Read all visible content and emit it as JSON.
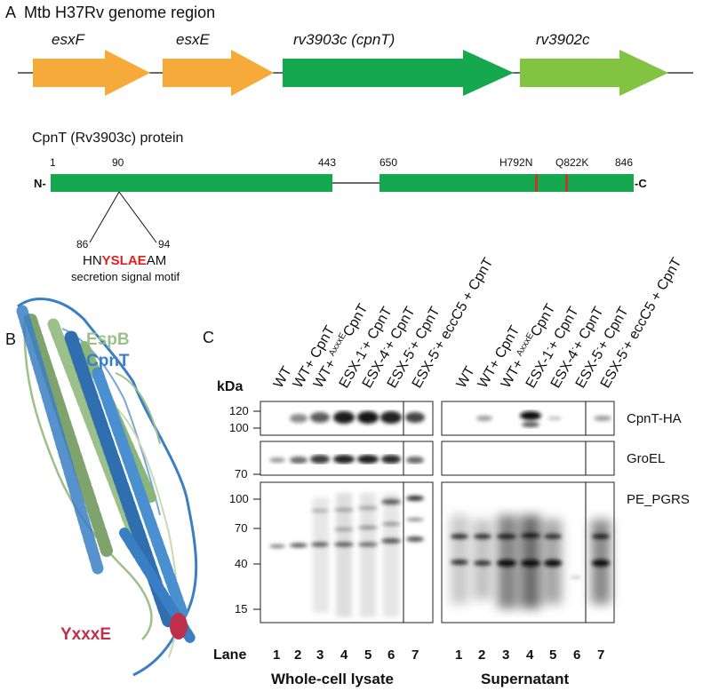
{
  "panel_a": {
    "letter": "A",
    "title": "Mtb H37Rv genome region",
    "genes": [
      {
        "name": "esxF",
        "color": "#f5aa3a"
      },
      {
        "name": "esxE",
        "color": "#f5aa3a"
      },
      {
        "name": "rv3903c (cpnT)",
        "color": "#16a84f"
      },
      {
        "name": "rv3902c",
        "color": "#82c342"
      }
    ],
    "protein_title": "CpnT (Rv3903c) protein",
    "n_term": "N-",
    "c_term": "-C",
    "positions": [
      "1",
      "90",
      "443",
      "650",
      "846"
    ],
    "mutations": [
      "H792N",
      "Q822K"
    ],
    "motif_start": "86",
    "motif_end": "94",
    "motif_pre": "HN",
    "motif_core": "YSLAE",
    "motif_post": "AM",
    "motif_caption": "secretion signal motif",
    "protein_color": "#16a84f",
    "mutation_color": "#c0392b",
    "motif_color": "#e02020"
  },
  "panel_b": {
    "letter": "B",
    "legend": [
      "EspB",
      "CpnT"
    ],
    "legend_colors": [
      "#9cc08a",
      "#3a7fc4"
    ],
    "motif_label": "YxxxE",
    "motif_color": "#c0304a"
  },
  "panel_c": {
    "letter": "C",
    "kda_label": "kDa",
    "lanes_left": [
      {
        "pre": "WT",
        "sup": "",
        "post": ""
      },
      {
        "pre": "WT+ CpnT",
        "sup": "",
        "post": ""
      },
      {
        "pre": "WT+ ",
        "sup": "AxxxE",
        "post": "CpnT"
      },
      {
        "pre": "ESX-1",
        "sup": "-",
        "post": "+ CpnT"
      },
      {
        "pre": "ESX-4",
        "sup": "-",
        "post": "+ CpnT"
      },
      {
        "pre": "ESX-5",
        "sup": "-",
        "post": "+ CpnT"
      },
      {
        "pre": "ESX-5",
        "sup": "-",
        "post": "+ eccC5 + CpnT"
      }
    ],
    "lanes_right": [
      {
        "pre": "WT",
        "sup": "",
        "post": ""
      },
      {
        "pre": "WT+ CpnT",
        "sup": "",
        "post": ""
      },
      {
        "pre": "WT+ ",
        "sup": "AxxxE",
        "post": "CpnT"
      },
      {
        "pre": "ESX-1",
        "sup": "-",
        "post": "+ CpnT"
      },
      {
        "pre": "ESX-4",
        "sup": "-",
        "post": "+ CpnT"
      },
      {
        "pre": "ESX-5",
        "sup": "-",
        "post": "+ CpnT"
      },
      {
        "pre": "ESX-5",
        "sup": "-",
        "post": "+ eccC5 + CpnT"
      }
    ],
    "blots": [
      "CpnT-HA",
      "GroEL",
      "PE_PGRS"
    ],
    "markers_blot1": [
      "120",
      "100"
    ],
    "markers_blot2": [
      "70"
    ],
    "markers_blot3": [
      "100",
      "70",
      "40",
      "15"
    ],
    "lane_label": "Lane",
    "lane_numbers": [
      "1",
      "2",
      "3",
      "4",
      "5",
      "6",
      "7"
    ],
    "group_left": "Whole-cell lysate",
    "group_right": "Supernatant"
  }
}
